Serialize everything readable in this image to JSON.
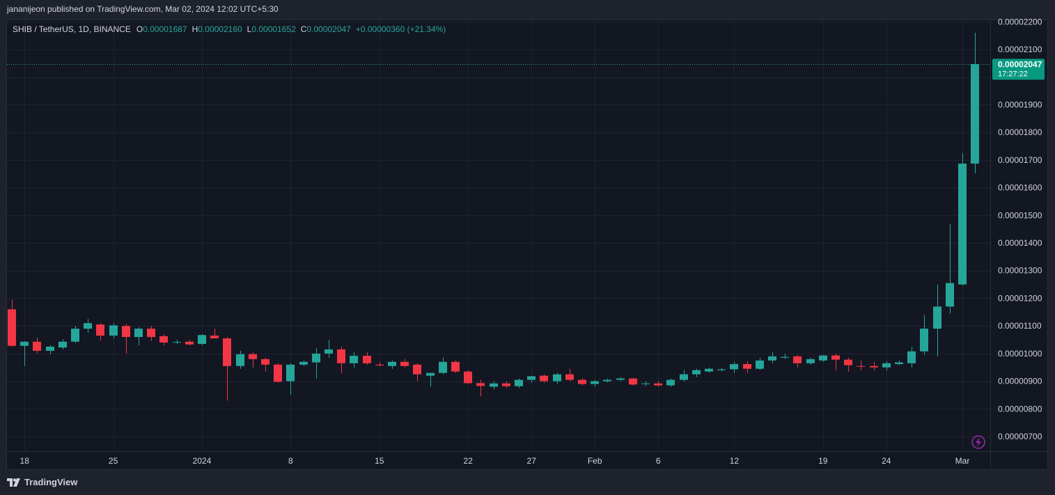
{
  "header": {
    "published_text": "jananijeon published on TradingView.com, Mar 02, 2024 12:02 UTC+5:30"
  },
  "legend": {
    "symbol": "SHIB / TetherUS, 1D, BINANCE",
    "open_key": "O",
    "open": "0.00001687",
    "high_key": "H",
    "high": "0.00002160",
    "low_key": "L",
    "low": "0.00001652",
    "close_key": "C",
    "close": "0.00002047",
    "change": "+0.00000360 (+21.34%)"
  },
  "price_badge": {
    "price": "0.00002047",
    "countdown": "17:27:22"
  },
  "footer": {
    "brand": "TradingView"
  },
  "colors": {
    "background": "#131722",
    "grid": "#1f2330",
    "up": "#26a69a",
    "down": "#f23645",
    "text": "#d1d4dc",
    "badge": "#089981",
    "bolt": "#9c27b0"
  },
  "icons": {
    "bolt": "lightning-bolt-icon",
    "brand": "tradingview-logo-icon"
  },
  "chart_data": {
    "type": "candlestick",
    "symbol": "SHIB / TetherUS",
    "interval": "1D",
    "exchange": "BINANCE",
    "ylim": [
      6.4e-06,
      2.22e-05
    ],
    "y_ticks": [
      "0.00000700",
      "0.00000800",
      "0.00000900",
      "0.00001000",
      "0.00001100",
      "0.00001200",
      "0.00001300",
      "0.00001400",
      "0.00001500",
      "0.00001600",
      "0.00001700",
      "0.00001800",
      "0.00001900",
      "0.00002000",
      "0.00002100",
      "0.00002200"
    ],
    "x_ticks": [
      {
        "label": "18",
        "index": 1
      },
      {
        "label": "25",
        "index": 8
      },
      {
        "label": "2024",
        "index": 15
      },
      {
        "label": "8",
        "index": 22
      },
      {
        "label": "15",
        "index": 29
      },
      {
        "label": "22",
        "index": 36
      },
      {
        "label": "27",
        "index": 41
      },
      {
        "label": "Feb",
        "index": 46
      },
      {
        "label": "6",
        "index": 51
      },
      {
        "label": "12",
        "index": 57
      },
      {
        "label": "19",
        "index": 64
      },
      {
        "label": "24",
        "index": 69
      },
      {
        "label": "Mar",
        "index": 75
      }
    ],
    "grid": true,
    "current_price": 2.047e-05,
    "candles": [
      {
        "o": 1.16e-05,
        "h": 1.195e-05,
        "l": 1.025e-05,
        "c": 1.028e-05
      },
      {
        "o": 1.028e-05,
        "h": 1.045e-05,
        "l": 9.55e-06,
        "c": 1.043e-05
      },
      {
        "o": 1.043e-05,
        "h": 1.058e-05,
        "l": 1e-05,
        "c": 1.01e-05
      },
      {
        "o": 1.01e-05,
        "h": 1.03e-05,
        "l": 9.97e-06,
        "c": 1.025e-05
      },
      {
        "o": 1.022e-05,
        "h": 1.052e-05,
        "l": 1.015e-05,
        "c": 1.043e-05
      },
      {
        "o": 1.043e-05,
        "h": 1.1e-05,
        "l": 1.038e-05,
        "c": 1.09e-05
      },
      {
        "o": 1.09e-05,
        "h": 1.125e-05,
        "l": 1.075e-05,
        "c": 1.11e-05
      },
      {
        "o": 1.105e-05,
        "h": 1.11e-05,
        "l": 1.047e-05,
        "c": 1.065e-05
      },
      {
        "o": 1.065e-05,
        "h": 1.11e-05,
        "l": 1.055e-05,
        "c": 1.102e-05
      },
      {
        "o": 1.1e-05,
        "h": 1.108e-05,
        "l": 1e-05,
        "c": 1.06e-05
      },
      {
        "o": 1.06e-05,
        "h": 1.095e-05,
        "l": 1.03e-05,
        "c": 1.09e-05
      },
      {
        "o": 1.09e-05,
        "h": 1.1e-05,
        "l": 1.045e-05,
        "c": 1.06e-05
      },
      {
        "o": 1.063e-05,
        "h": 1.07e-05,
        "l": 1.03e-05,
        "c": 1.04e-05
      },
      {
        "o": 1.04e-05,
        "h": 1.05e-05,
        "l": 1.035e-05,
        "c": 1.042e-05
      },
      {
        "o": 1.043e-05,
        "h": 1.05e-05,
        "l": 1.03e-05,
        "c": 1.033e-05
      },
      {
        "o": 1.035e-05,
        "h": 1.07e-05,
        "l": 1.03e-05,
        "c": 1.067e-05
      },
      {
        "o": 1.065e-05,
        "h": 1.09e-05,
        "l": 1.055e-05,
        "c": 1.055e-05
      },
      {
        "o": 1.055e-05,
        "h": 1.06e-05,
        "l": 8.3e-06,
        "c": 9.55e-06
      },
      {
        "o": 9.55e-06,
        "h": 1.01e-05,
        "l": 9.45e-06,
        "c": 9.98e-06
      },
      {
        "o": 9.98e-06,
        "h": 1.005e-05,
        "l": 9.5e-06,
        "c": 9.8e-06
      },
      {
        "o": 9.8e-06,
        "h": 9.85e-06,
        "l": 9.35e-06,
        "c": 9.6e-06
      },
      {
        "o": 9.6e-06,
        "h": 9.65e-06,
        "l": 8.95e-06,
        "c": 8.98e-06
      },
      {
        "o": 9e-06,
        "h": 9.65e-06,
        "l": 8.5e-06,
        "c": 9.6e-06
      },
      {
        "o": 9.6e-06,
        "h": 9.75e-06,
        "l": 9.55e-06,
        "c": 9.7e-06
      },
      {
        "o": 9.68e-06,
        "h": 1.02e-05,
        "l": 9.1e-06,
        "c": 1e-05
      },
      {
        "o": 1e-05,
        "h": 1.05e-05,
        "l": 9.85e-06,
        "c": 1.015e-05
      },
      {
        "o": 1.015e-05,
        "h": 1.025e-05,
        "l": 9.3e-06,
        "c": 9.65e-06
      },
      {
        "o": 9.65e-06,
        "h": 1.005e-05,
        "l": 9.5e-06,
        "c": 9.92e-06
      },
      {
        "o": 9.92e-06,
        "h": 1.005e-05,
        "l": 9.6e-06,
        "c": 9.65e-06
      },
      {
        "o": 9.6e-06,
        "h": 9.7e-06,
        "l": 9.55e-06,
        "c": 9.57e-06
      },
      {
        "o": 9.55e-06,
        "h": 9.75e-06,
        "l": 9.45e-06,
        "c": 9.7e-06
      },
      {
        "o": 9.7e-06,
        "h": 9.8e-06,
        "l": 9.5e-06,
        "c": 9.55e-06
      },
      {
        "o": 9.6e-06,
        "h": 9.65e-06,
        "l": 9e-06,
        "c": 9.25e-06
      },
      {
        "o": 9.2e-06,
        "h": 9.3e-06,
        "l": 8.8e-06,
        "c": 9.3e-06
      },
      {
        "o": 9.3e-06,
        "h": 9.85e-06,
        "l": 9.25e-06,
        "c": 9.7e-06
      },
      {
        "o": 9.7e-06,
        "h": 9.75e-06,
        "l": 9.3e-06,
        "c": 9.35e-06
      },
      {
        "o": 9.35e-06,
        "h": 9.4e-06,
        "l": 8.9e-06,
        "c": 8.93e-06
      },
      {
        "o": 8.93e-06,
        "h": 9.05e-06,
        "l": 8.45e-06,
        "c": 8.83e-06
      },
      {
        "o": 8.8e-06,
        "h": 9e-06,
        "l": 8.7e-06,
        "c": 8.92e-06
      },
      {
        "o": 8.92e-06,
        "h": 9e-06,
        "l": 8.75e-06,
        "c": 8.82e-06
      },
      {
        "o": 8.82e-06,
        "h": 9.1e-06,
        "l": 8.75e-06,
        "c": 9.05e-06
      },
      {
        "o": 9.05e-06,
        "h": 9.2e-06,
        "l": 8.95e-06,
        "c": 9.18e-06
      },
      {
        "o": 9.2e-06,
        "h": 9.25e-06,
        "l": 8.95e-06,
        "c": 9e-06
      },
      {
        "o": 9e-06,
        "h": 9.3e-06,
        "l": 8.9e-06,
        "c": 9.25e-06
      },
      {
        "o": 9.25e-06,
        "h": 9.45e-06,
        "l": 9e-06,
        "c": 9.05e-06
      },
      {
        "o": 9.05e-06,
        "h": 9.1e-06,
        "l": 8.85e-06,
        "c": 8.9e-06
      },
      {
        "o": 8.9e-06,
        "h": 9.05e-06,
        "l": 8.8e-06,
        "c": 9e-06
      },
      {
        "o": 9e-06,
        "h": 9.1e-06,
        "l": 8.95e-06,
        "c": 9.05e-06
      },
      {
        "o": 9.05e-06,
        "h": 9.15e-06,
        "l": 9e-06,
        "c": 9.1e-06
      },
      {
        "o": 9.1e-06,
        "h": 9.12e-06,
        "l": 8.85e-06,
        "c": 8.88e-06
      },
      {
        "o": 8.9e-06,
        "h": 9e-06,
        "l": 8.82e-06,
        "c": 8.92e-06
      },
      {
        "o": 8.92e-06,
        "h": 9e-06,
        "l": 8.8e-06,
        "c": 8.85e-06
      },
      {
        "o": 8.85e-06,
        "h": 9.1e-06,
        "l": 8.8e-06,
        "c": 9.05e-06
      },
      {
        "o": 9.05e-06,
        "h": 9.4e-06,
        "l": 9e-06,
        "c": 9.25e-06
      },
      {
        "o": 9.25e-06,
        "h": 9.45e-06,
        "l": 9.15e-06,
        "c": 9.4e-06
      },
      {
        "o": 9.35e-06,
        "h": 9.5e-06,
        "l": 9.3e-06,
        "c": 9.45e-06
      },
      {
        "o": 9.4e-06,
        "h": 9.48e-06,
        "l": 9.35e-06,
        "c": 9.43e-06
      },
      {
        "o": 9.43e-06,
        "h": 9.7e-06,
        "l": 9.3e-06,
        "c": 9.62e-06
      },
      {
        "o": 9.62e-06,
        "h": 9.72e-06,
        "l": 9.3e-06,
        "c": 9.45e-06
      },
      {
        "o": 9.45e-06,
        "h": 9.85e-06,
        "l": 9.4e-06,
        "c": 9.75e-06
      },
      {
        "o": 9.75e-06,
        "h": 1.005e-05,
        "l": 9.65e-06,
        "c": 9.9e-06
      },
      {
        "o": 9.85e-06,
        "h": 1e-05,
        "l": 9.8e-06,
        "c": 9.88e-06
      },
      {
        "o": 9.9e-06,
        "h": 9.95e-06,
        "l": 9.5e-06,
        "c": 9.65e-06
      },
      {
        "o": 9.65e-06,
        "h": 9.85e-06,
        "l": 9.6e-06,
        "c": 9.8e-06
      },
      {
        "o": 9.75e-06,
        "h": 9.95e-06,
        "l": 9.7e-06,
        "c": 9.93e-06
      },
      {
        "o": 9.93e-06,
        "h": 1e-05,
        "l": 9.4e-06,
        "c": 9.78e-06
      },
      {
        "o": 9.78e-06,
        "h": 9.85e-06,
        "l": 9.35e-06,
        "c": 9.58e-06
      },
      {
        "o": 9.55e-06,
        "h": 9.75e-06,
        "l": 9.4e-06,
        "c": 9.53e-06
      },
      {
        "o": 9.55e-06,
        "h": 9.7e-06,
        "l": 9.4e-06,
        "c": 9.5e-06
      },
      {
        "o": 9.5e-06,
        "h": 9.72e-06,
        "l": 9.38e-06,
        "c": 9.65e-06
      },
      {
        "o": 9.62e-06,
        "h": 9.75e-06,
        "l": 9.58e-06,
        "c": 9.68e-06
      },
      {
        "o": 9.65e-06,
        "h": 1.025e-05,
        "l": 9.5e-06,
        "c": 1.008e-05
      },
      {
        "o": 1.008e-05,
        "h": 1.14e-05,
        "l": 9.95e-06,
        "c": 1.09e-05
      },
      {
        "o": 1.09e-05,
        "h": 1.25e-05,
        "l": 9.9e-06,
        "c": 1.17e-05
      },
      {
        "o": 1.17e-05,
        "h": 1.47e-05,
        "l": 1.145e-05,
        "c": 1.255e-05
      },
      {
        "o": 1.25e-05,
        "h": 1.725e-05,
        "l": 1.245e-05,
        "c": 1.687e-05
      },
      {
        "o": 1.687e-05,
        "h": 2.16e-05,
        "l": 1.652e-05,
        "c": 2.047e-05
      }
    ]
  }
}
